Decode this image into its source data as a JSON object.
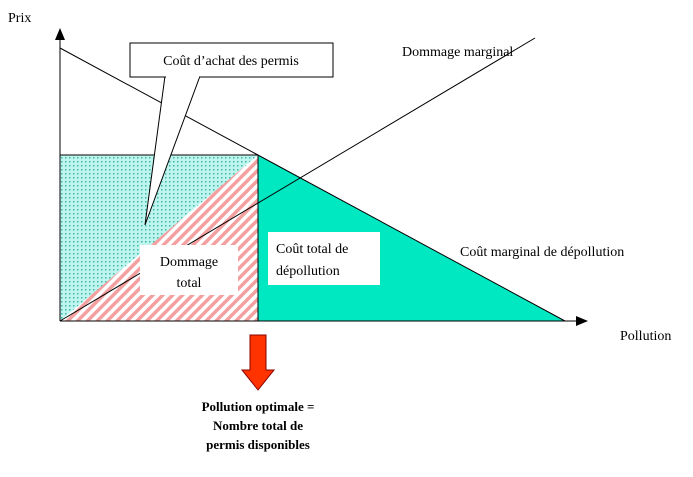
{
  "axes": {
    "y_label": "Prix",
    "x_label": "Pollution"
  },
  "curves": {
    "damage": "Dommage marginal",
    "abatement": "Coût marginal de dépollution"
  },
  "callout": "Coût d’achat des permis",
  "areas": {
    "damage_total": [
      "Dommage",
      "total"
    ],
    "abatement_total": [
      "Coût total de",
      "dépollution"
    ]
  },
  "conclusion": [
    "Pollution optimale =",
    "Nombre total de",
    "permis disponibles"
  ]
}
